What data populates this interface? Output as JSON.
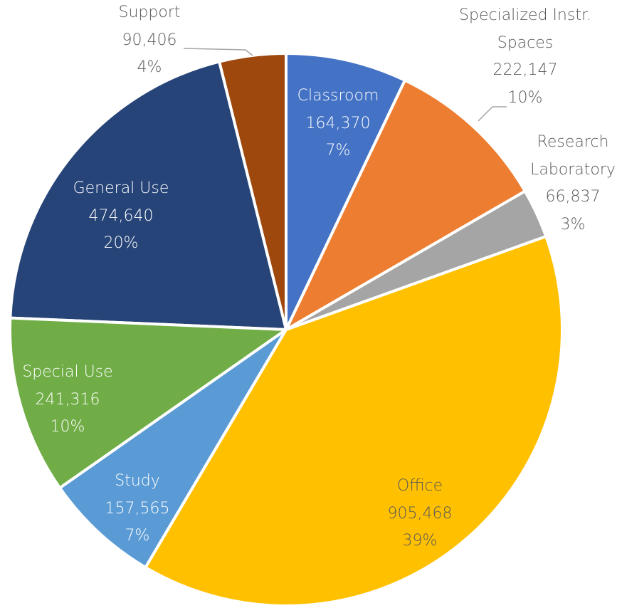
{
  "chart_data": {
    "type": "pie",
    "categories": [
      "Classroom",
      "Specialized Instr. Spaces",
      "Research Laboratory",
      "Office",
      "Study",
      "Special Use",
      "General Use",
      "Support"
    ],
    "values": [
      164370,
      222147,
      66837,
      905468,
      157565,
      241316,
      474640,
      90406
    ],
    "value_labels": [
      "164,370",
      "222,147",
      "66,837",
      "905,468",
      "157,565",
      "241,316",
      "474,640",
      "90,406"
    ],
    "percent_labels": [
      "7%",
      "10%",
      "3%",
      "39%",
      "7%",
      "10%",
      "20%",
      "4%"
    ],
    "colors": [
      "#4472c4",
      "#ed7d31",
      "#a5a5a5",
      "#ffc000",
      "#5b9bd5",
      "#70ad47",
      "#264478",
      "#9e480e"
    ]
  }
}
